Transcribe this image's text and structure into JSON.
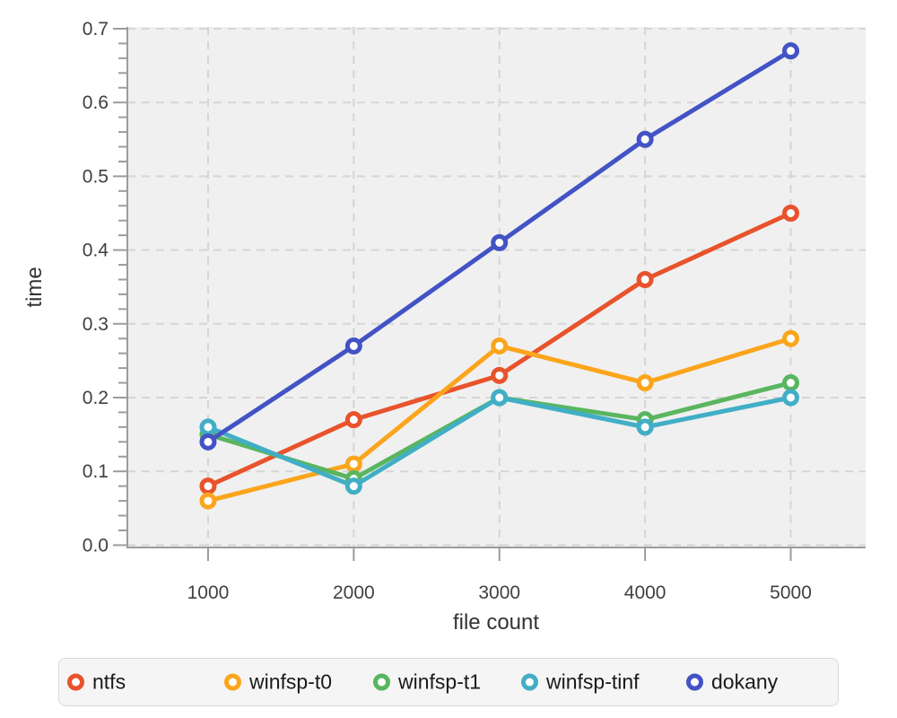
{
  "chart_data": {
    "type": "line",
    "xlabel": "file count",
    "ylabel": "time",
    "x": [
      1000,
      2000,
      3000,
      4000,
      5000
    ],
    "x_tick_labels": [
      "1000",
      "2000",
      "3000",
      "4000",
      "5000"
    ],
    "y_tick_labels": [
      "0.0",
      "0.1",
      "0.2",
      "0.3",
      "0.4",
      "0.5",
      "0.6",
      "0.7"
    ],
    "xlim": [
      446,
      5514
    ],
    "ylim": [
      0,
      0.7
    ],
    "y_major_step": 0.1,
    "y_minor_step": 0.02,
    "grid": true,
    "grid_style": "dashed",
    "marker": "open-circle",
    "legend_position": "bottom",
    "series": [
      {
        "name": "ntfs",
        "color": "#E8532C",
        "values": [
          0.08,
          0.17,
          0.23,
          0.36,
          0.45
        ]
      },
      {
        "name": "winfsp-t0",
        "color": "#FBA51D",
        "values": [
          0.06,
          0.11,
          0.27,
          0.22,
          0.28
        ]
      },
      {
        "name": "winfsp-t1",
        "color": "#59B55F",
        "values": [
          0.15,
          0.09,
          0.2,
          0.17,
          0.22
        ]
      },
      {
        "name": "winfsp-tinf",
        "color": "#41AEC6",
        "values": [
          0.16,
          0.08,
          0.2,
          0.16,
          0.2
        ]
      },
      {
        "name": "dokany",
        "color": "#4353C6",
        "values": [
          0.14,
          0.27,
          0.41,
          0.55,
          0.67
        ]
      }
    ]
  },
  "style": {
    "background": "#FFFFFF",
    "plot_bg": "#F0F0F0",
    "grid_color": "#D5D5D5",
    "axis_color": "#9C9C9C",
    "tick_label_color": "#404040",
    "axis_label_color": "#333333",
    "legend_bg": "#F5F5F5",
    "legend_border": "#D8D8D8",
    "legend_text_color": "#1A1A1A"
  }
}
